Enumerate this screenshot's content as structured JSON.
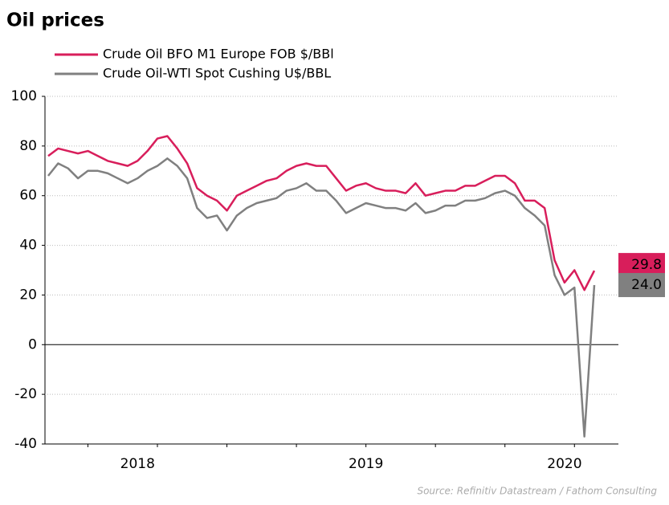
{
  "chart_data": {
    "type": "line",
    "title": "Oil prices",
    "source": "Source: Refinitiv Datastream / Fathom Consulting",
    "categories": [
      null,
      null,
      null,
      null,
      null,
      null,
      null,
      null,
      null,
      "2018",
      null,
      null,
      null,
      null,
      null,
      null,
      null,
      null,
      null,
      null,
      null,
      null,
      null,
      null,
      null,
      null,
      null,
      null,
      null,
      null,
      null,
      null,
      "2019",
      null,
      null,
      null,
      null,
      null,
      null,
      null,
      null,
      null,
      null,
      null,
      null,
      null,
      null,
      null,
      null,
      null,
      null,
      null,
      "2020",
      null,
      null,
      null
    ],
    "series": [
      {
        "name": "Crude Oil BFO M1 Europe FOB $/BBl",
        "color": "#d81e5b",
        "values": [
          76,
          79,
          78,
          77,
          78,
          76,
          74,
          73,
          72,
          74,
          78,
          83,
          84,
          79,
          73,
          63,
          60,
          58,
          54,
          60,
          62,
          64,
          66,
          67,
          70,
          72,
          73,
          72,
          72,
          67,
          62,
          64,
          65,
          63,
          62,
          62,
          61,
          65,
          60,
          61,
          62,
          62,
          64,
          64,
          66,
          68,
          68,
          65,
          58,
          58,
          55,
          34,
          25,
          30,
          22,
          29.8
        ],
        "value_labels": [
          null,
          null,
          null,
          null,
          null,
          null,
          null,
          null,
          null,
          null,
          null,
          null,
          null,
          null,
          null,
          null,
          null,
          null,
          null,
          null,
          null,
          null,
          null,
          null,
          null,
          null,
          null,
          null,
          null,
          null,
          null,
          null,
          null,
          null,
          null,
          null,
          null,
          null,
          null,
          null,
          null,
          null,
          null,
          null,
          null,
          null,
          null,
          null,
          null,
          null,
          null,
          null,
          null,
          null,
          null,
          "29.8"
        ]
      },
      {
        "name": "Crude Oil-WTI Spot Cushing U$/BBL",
        "color": "#808080",
        "values": [
          68,
          73,
          71,
          67,
          70,
          70,
          69,
          67,
          65,
          67,
          70,
          72,
          75,
          72,
          67,
          55,
          51,
          52,
          46,
          52,
          55,
          57,
          58,
          59,
          62,
          63,
          65,
          62,
          62,
          58,
          53,
          55,
          57,
          56,
          55,
          55,
          54,
          57,
          53,
          54,
          56,
          56,
          58,
          58,
          59,
          61,
          62,
          60,
          55,
          52,
          48,
          28,
          20,
          23,
          -37,
          24
        ],
        "value_labels": [
          null,
          null,
          null,
          null,
          null,
          null,
          null,
          null,
          null,
          null,
          null,
          null,
          null,
          null,
          null,
          null,
          null,
          null,
          null,
          null,
          null,
          null,
          null,
          null,
          null,
          null,
          null,
          null,
          null,
          null,
          null,
          null,
          null,
          null,
          null,
          null,
          null,
          null,
          null,
          null,
          null,
          null,
          null,
          null,
          null,
          null,
          null,
          null,
          null,
          null,
          null,
          null,
          null,
          null,
          null,
          "24.0"
        ]
      }
    ],
    "ylim": [
      -40,
      100
    ],
    "yticks": [
      -40,
      -20,
      0,
      20,
      40,
      60,
      80,
      100
    ],
    "grid": true
  }
}
